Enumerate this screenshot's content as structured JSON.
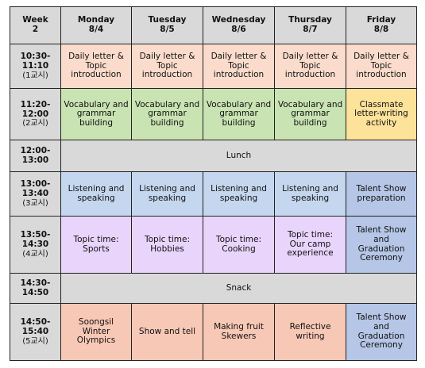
{
  "header": {
    "week": [
      "Week",
      "2"
    ],
    "days": [
      {
        "name": "Monday",
        "date": "8/4"
      },
      {
        "name": "Tuesday",
        "date": "8/5"
      },
      {
        "name": "Wednesday",
        "date": "8/6"
      },
      {
        "name": "Thursday",
        "date": "8/7"
      },
      {
        "name": "Friday",
        "date": "8/8"
      }
    ]
  },
  "rows": [
    {
      "time": [
        "10:30-",
        "11:10"
      ],
      "period": "(1교시)",
      "cells": [
        {
          "lines": [
            "Daily letter &",
            "Topic",
            "introduction"
          ]
        },
        {
          "lines": [
            "Daily letter &",
            "Topic",
            "introduction"
          ]
        },
        {
          "lines": [
            "Daily letter &",
            "Topic",
            "introduction"
          ]
        },
        {
          "lines": [
            "Daily letter &",
            "Topic",
            "introduction"
          ]
        },
        {
          "lines": [
            "Daily letter &",
            "Topic",
            "introduction"
          ]
        }
      ]
    },
    {
      "time": [
        "11:20-",
        "12:00"
      ],
      "period": "(2교시)",
      "cells": [
        {
          "lines": [
            "Vocabulary and",
            "grammar",
            "building"
          ]
        },
        {
          "lines": [
            "Vocabulary and",
            "grammar",
            "building"
          ]
        },
        {
          "lines": [
            "Vocabulary and",
            "grammar",
            "building"
          ]
        },
        {
          "lines": [
            "Vocabulary and",
            "grammar",
            "building"
          ]
        },
        {
          "lines": [
            "Classmate",
            "letter-writing",
            "activity"
          ]
        }
      ]
    },
    {
      "time": [
        "12:00-",
        "13:00"
      ],
      "period": "",
      "span": {
        "lines": [
          "Lunch"
        ]
      }
    },
    {
      "time": [
        "13:00-",
        "13:40"
      ],
      "period": "(3교시)",
      "cells": [
        {
          "lines": [
            "Listening and",
            "speaking"
          ]
        },
        {
          "lines": [
            "Listening and",
            "speaking"
          ]
        },
        {
          "lines": [
            "Listening and",
            "speaking"
          ]
        },
        {
          "lines": [
            "Listening and",
            "speaking"
          ]
        },
        {
          "lines": [
            "Talent Show",
            "preparation"
          ]
        }
      ]
    },
    {
      "time": [
        "13:50-",
        "14:30"
      ],
      "period": "(4교시)",
      "cells": [
        {
          "lines": [
            "Topic time:",
            "Sports"
          ]
        },
        {
          "lines": [
            "Topic time:",
            "Hobbies"
          ]
        },
        {
          "lines": [
            "Topic time:",
            "Cooking"
          ]
        },
        {
          "lines": [
            "Topic time:",
            "Our camp",
            "experience"
          ]
        },
        {
          "lines": [
            "Talent Show",
            "and",
            "Graduation",
            "Ceremony"
          ]
        }
      ]
    },
    {
      "time": [
        "14:30-",
        "14:50"
      ],
      "period": "",
      "span": {
        "lines": [
          "Snack"
        ]
      }
    },
    {
      "time": [
        "14:50-",
        "15:40"
      ],
      "period": "(5교시)",
      "cells": [
        {
          "lines": [
            "Soongsil",
            "Winter",
            "Olympics"
          ]
        },
        {
          "lines": [
            "Show and tell"
          ]
        },
        {
          "lines": [
            "Making fruit",
            "Skewers"
          ]
        },
        {
          "lines": [
            "Reflective",
            "writing"
          ]
        },
        {
          "lines": [
            "Talent Show",
            "and",
            "Graduation",
            "Ceremony"
          ]
        }
      ]
    }
  ]
}
